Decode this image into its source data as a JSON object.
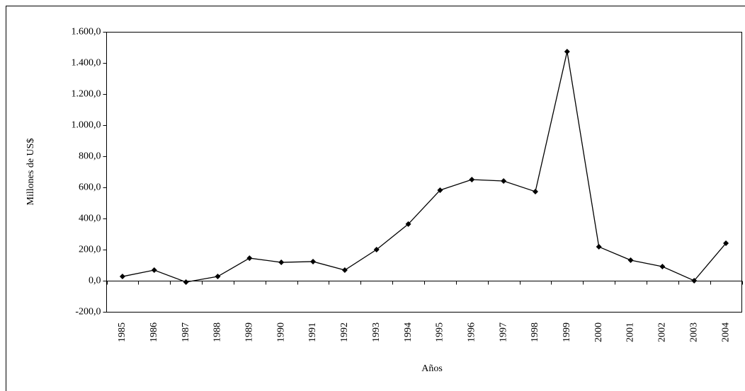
{
  "chart_data": {
    "type": "line",
    "x_label": "Años",
    "y_label": "Millones de US$",
    "categories": [
      "1985",
      "1986",
      "1987",
      "1988",
      "1989",
      "1990",
      "1991",
      "1992",
      "1993",
      "1994",
      "1995",
      "1996",
      "1997",
      "1998",
      "1999",
      "2000",
      "2001",
      "2002",
      "2003",
      "2004"
    ],
    "series": [
      {
        "name": "Millones de US$",
        "color": "#000000",
        "values": [
          27,
          68,
          -9,
          27,
          145,
          118,
          123,
          68,
          200,
          364,
          582,
          650,
          641,
          573,
          1473,
          218,
          132,
          91,
          0,
          241
        ]
      }
    ],
    "ylim": [
      -200,
      1600
    ],
    "yticks": [
      {
        "value": -200,
        "label": "-200,0"
      },
      {
        "value": 0,
        "label": "0,0"
      },
      {
        "value": 200,
        "label": "200,0"
      },
      {
        "value": 400,
        "label": "400,0"
      },
      {
        "value": 600,
        "label": "600,0"
      },
      {
        "value": 800,
        "label": "800,0"
      },
      {
        "value": 1000,
        "label": "1.000,0"
      },
      {
        "value": 1200,
        "label": "1.200,0"
      },
      {
        "value": 1400,
        "label": "1.400,0"
      },
      {
        "value": 1600,
        "label": "1.600,0"
      }
    ]
  }
}
